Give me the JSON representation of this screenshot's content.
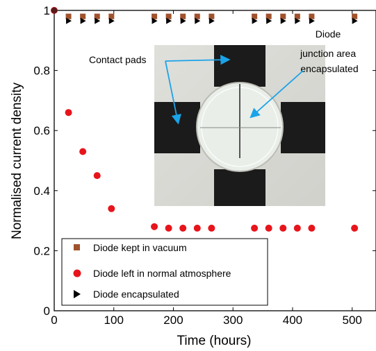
{
  "chart_data": {
    "type": "scatter",
    "xlabel": "Time (hours)",
    "ylabel": "Normalised current density",
    "xlim": [
      0,
      540
    ],
    "ylim": [
      0,
      1
    ],
    "x_ticks": [
      "0",
      "100",
      "200",
      "300",
      "400",
      "500"
    ],
    "y_ticks": [
      "0",
      "0.2",
      "0.4",
      "0.6",
      "0.8",
      "1"
    ],
    "grid": false,
    "legend_position": "bottom-left",
    "series": [
      {
        "name": "Diode kept in vacuum",
        "marker": "square",
        "color": "#A0522D",
        "points": [
          [
            0,
            1
          ],
          [
            24,
            0.98
          ],
          [
            48,
            0.98
          ],
          [
            72,
            0.98
          ],
          [
            96,
            0.98
          ],
          [
            168,
            0.98
          ],
          [
            192,
            0.98
          ],
          [
            216,
            0.98
          ],
          [
            240,
            0.98
          ],
          [
            264,
            0.98
          ],
          [
            336,
            0.98
          ],
          [
            360,
            0.98
          ],
          [
            384,
            0.98
          ],
          [
            408,
            0.98
          ],
          [
            432,
            0.98
          ],
          [
            504,
            0.98
          ]
        ]
      },
      {
        "name": "Diode left in normal atmosphere",
        "marker": "circle",
        "color": "#E8141B",
        "points": [
          [
            0,
            1
          ],
          [
            24,
            0.66
          ],
          [
            48,
            0.53
          ],
          [
            72,
            0.45
          ],
          [
            96,
            0.34
          ],
          [
            168,
            0.28
          ],
          [
            192,
            0.275
          ],
          [
            216,
            0.275
          ],
          [
            240,
            0.275
          ],
          [
            264,
            0.275
          ],
          [
            336,
            0.275
          ],
          [
            360,
            0.275
          ],
          [
            384,
            0.275
          ],
          [
            408,
            0.275
          ],
          [
            432,
            0.275
          ],
          [
            504,
            0.275
          ]
        ]
      },
      {
        "name": "Diode encapsulated",
        "marker": "triangle-right",
        "color": "#000000",
        "points": [
          [
            24,
            0.965
          ],
          [
            48,
            0.965
          ],
          [
            72,
            0.965
          ],
          [
            96,
            0.965
          ],
          [
            168,
            0.965
          ],
          [
            192,
            0.965
          ],
          [
            216,
            0.965
          ],
          [
            240,
            0.965
          ],
          [
            264,
            0.965
          ],
          [
            336,
            0.965
          ],
          [
            360,
            0.965
          ],
          [
            384,
            0.965
          ],
          [
            408,
            0.965
          ],
          [
            432,
            0.965
          ],
          [
            504,
            0.965
          ]
        ]
      }
    ],
    "annotations": [
      {
        "text": "Contact pads"
      },
      {
        "text_lines": [
          "Diode",
          "junction area",
          "encapsulated"
        ]
      }
    ],
    "inset_photo": "photo of diode with four black contact pads and a clear circular encapsulation"
  }
}
